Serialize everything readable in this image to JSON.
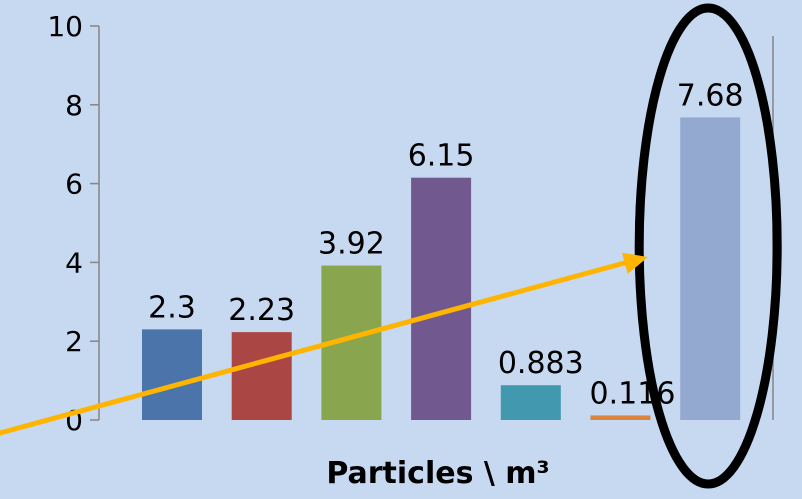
{
  "chart_data": {
    "type": "bar",
    "title": "",
    "xlabel": "Particles \\ m³",
    "ylabel": "",
    "ylim": [
      0,
      10
    ],
    "yticks": [
      0,
      2,
      4,
      6,
      8,
      10
    ],
    "grid": false,
    "legend": "none",
    "values": [
      2.3,
      2.23,
      3.92,
      6.15,
      0.883,
      0.116,
      7.68
    ],
    "data_labels": [
      "2.3",
      "2.23",
      "3.92",
      "6.15",
      "0.883",
      "0.116",
      "7.68"
    ],
    "bar_colors": [
      "#4a74aa",
      "#aa4643",
      "#89a54e",
      "#71588f",
      "#4198af",
      "#db843d",
      "#93a9cf"
    ],
    "annotations": {
      "highlight_ellipse_on_bar": 7,
      "ellipse_color": "#000000",
      "arrow_color": "#ffb500"
    }
  }
}
